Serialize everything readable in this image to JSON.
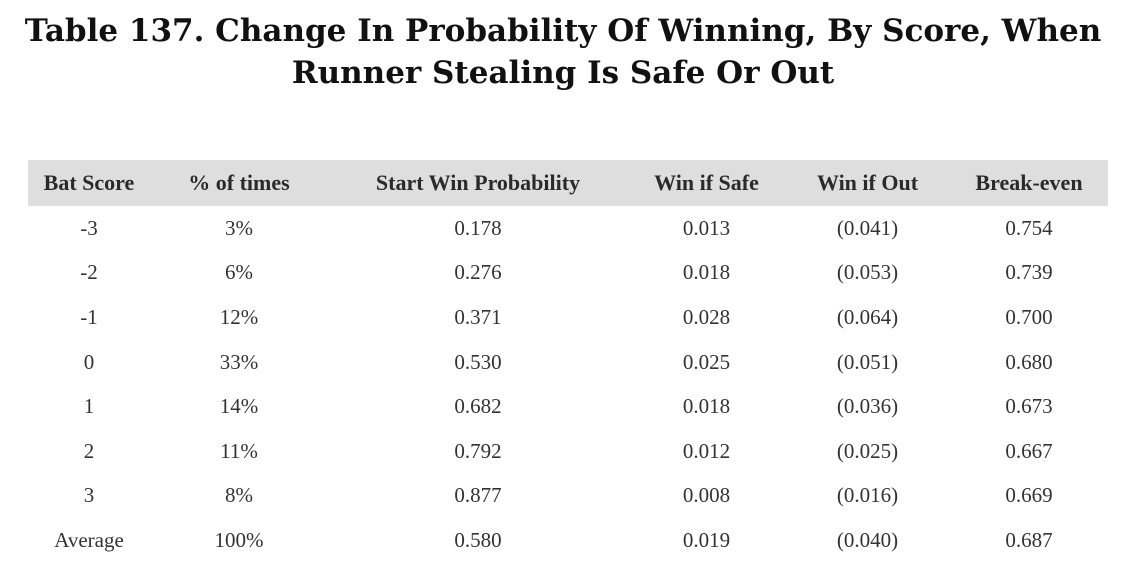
{
  "title_line1": "Table 137. Change In Probability Of Winning, By Score, When",
  "title_line2": "Runner Stealing Is Safe Or Out",
  "table": {
    "headers": [
      "Bat Score",
      "% of times",
      "Start Win Probability",
      "Win if Safe",
      "Win if Out",
      "Break-even"
    ],
    "rows": [
      [
        "-3",
        "3%",
        "0.178",
        "0.013",
        "(0.041)",
        "0.754"
      ],
      [
        "-2",
        "6%",
        "0.276",
        "0.018",
        "(0.053)",
        "0.739"
      ],
      [
        "-1",
        "12%",
        "0.371",
        "0.028",
        "(0.064)",
        "0.700"
      ],
      [
        "0",
        "33%",
        "0.530",
        "0.025",
        "(0.051)",
        "0.680"
      ],
      [
        "1",
        "14%",
        "0.682",
        "0.018",
        "(0.036)",
        "0.673"
      ],
      [
        "2",
        "11%",
        "0.792",
        "0.012",
        "(0.025)",
        "0.667"
      ],
      [
        "3",
        "8%",
        "0.877",
        "0.008",
        "(0.016)",
        "0.669"
      ],
      [
        "Average",
        "100%",
        "0.580",
        "0.019",
        "(0.040)",
        "0.687"
      ]
    ]
  }
}
